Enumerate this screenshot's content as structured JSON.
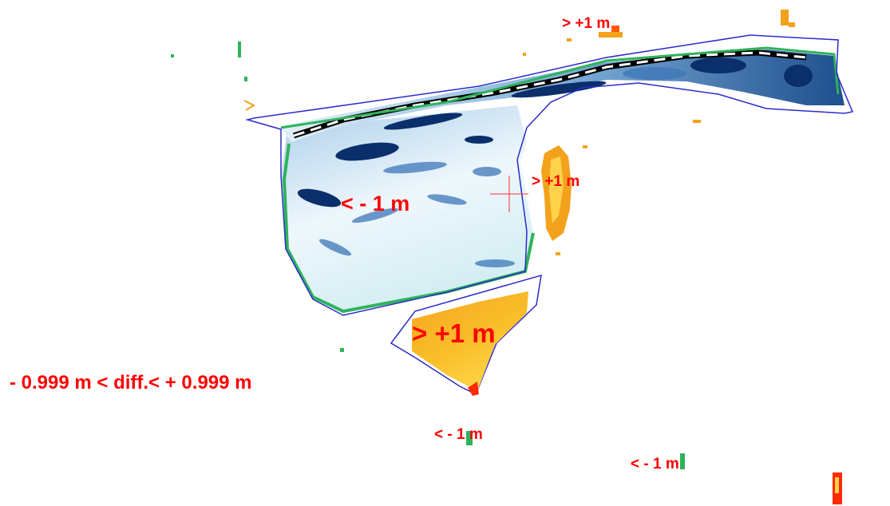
{
  "labels": {
    "top_gain": "> +1 m",
    "pond_right_gain": "> +1 m",
    "pond_loss": "< - 1 m",
    "south_gain": "> +1 m",
    "tolerance_band": "- 0.999 m < diff.< + 0.999 m",
    "bottom_loss_1": "< - 1 m",
    "bottom_loss_2": "< - 1 m"
  },
  "colors": {
    "background": "#ffffff",
    "label": "#ff0000",
    "outline": "#2b2bcc",
    "deep_loss": "#0a2f6b",
    "mid_loss": "#3d76b8",
    "light_loss": "#cfe6f5",
    "edge_green": "#2eb35a",
    "gain_orange": "#f2a21c",
    "gain_yellow": "#ffd24a",
    "strong_gain": "#ff2a00"
  }
}
